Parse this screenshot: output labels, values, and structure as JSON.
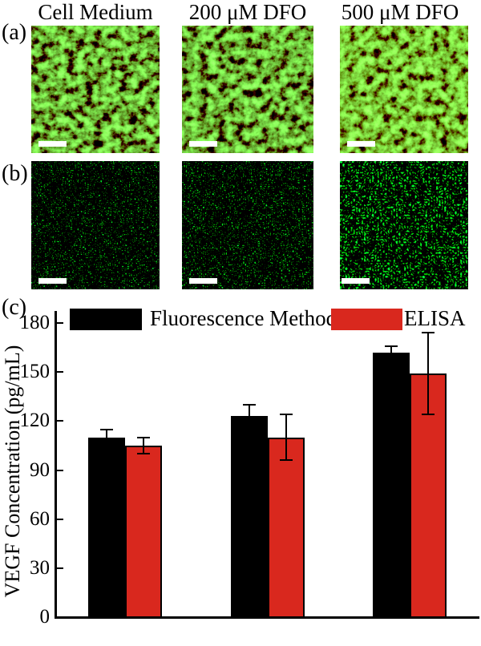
{
  "figure": {
    "column_headers": [
      "Cell Medium",
      "200 μM DFO",
      "500 μM DFO"
    ],
    "panel_a_label": "(a)",
    "panel_b_label": "(b)",
    "panel_c_label": "(c)",
    "panel_a_description": "dense green fluorescent cells on dark background, white scale bar bottom-left",
    "panel_b_description": "sparse green fluorescent puncta on dark background, white scale bar bottom-left",
    "scale_bar_icon": "white-rectangle"
  },
  "chart_data": {
    "type": "bar",
    "title": "",
    "categories": [
      "Cell Medium",
      "200 μM DFO",
      "500 μM DFO"
    ],
    "series": [
      {
        "name": "Fluorescence Method",
        "color": "#000000",
        "values": [
          110,
          123,
          162
        ],
        "errors": [
          5,
          7,
          4
        ]
      },
      {
        "name": "ELISA",
        "color": "#d9281e",
        "values": [
          105,
          110,
          149
        ],
        "errors": [
          5,
          14,
          25
        ]
      }
    ],
    "xlabel": "",
    "ylabel": "VEGF Concentration (pg/mL)",
    "yticks": [
      0,
      30,
      60,
      90,
      120,
      150,
      180
    ],
    "ylim": [
      0,
      187
    ],
    "x_tick_labels_visible": false,
    "grid": false,
    "legend_position": "top",
    "bar_outline_color": "#000000",
    "error_bar_color": "#000000"
  }
}
